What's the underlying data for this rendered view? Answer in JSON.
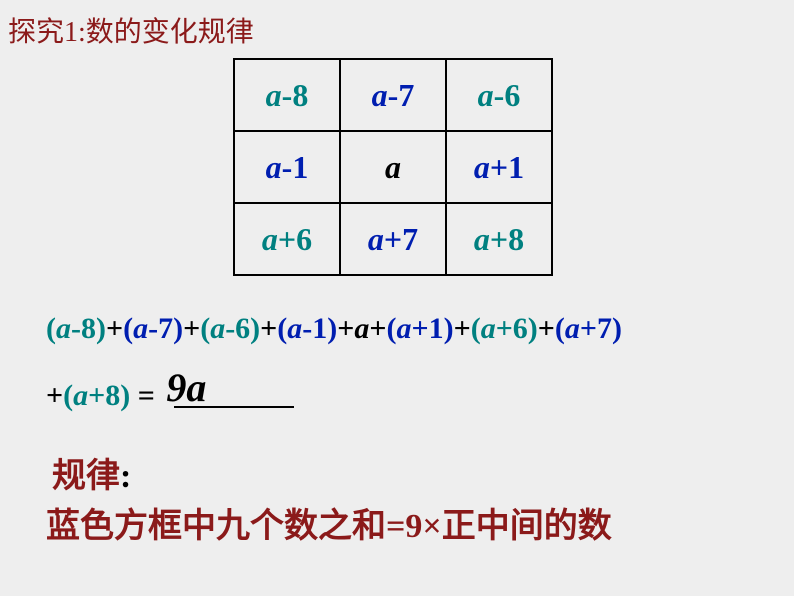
{
  "title": {
    "text": "探究1:数的变化规律",
    "color": "#8b1a1a"
  },
  "grid": {
    "cells": [
      [
        {
          "var": "a",
          "sep": "-",
          "num": "8",
          "color": "#008080"
        },
        {
          "var": "a",
          "sep": "-",
          "num": "7",
          "color": "#001eb0"
        },
        {
          "var": "a",
          "sep": "-",
          "num": "6",
          "color": "#008080"
        }
      ],
      [
        {
          "var": "a",
          "sep": "-",
          "num": "1",
          "color": "#001eb0"
        },
        {
          "var": "a",
          "sep": "",
          "num": "",
          "color": "#000000",
          "center": true
        },
        {
          "var": "a",
          "sep": "+",
          "num": "1",
          "color": "#001eb0"
        }
      ],
      [
        {
          "var": "a",
          "sep": "+",
          "num": "6",
          "color": "#008080"
        },
        {
          "var": "a",
          "sep": "+",
          "num": "7",
          "color": "#001eb0"
        },
        {
          "var": "a",
          "sep": "+",
          "num": "8",
          "color": "#008080"
        }
      ]
    ]
  },
  "equation": {
    "parts": [
      {
        "text": "(",
        "color": "#008080"
      },
      {
        "text": "a",
        "color": "#008080",
        "italic": true
      },
      {
        "text": "-8)",
        "color": "#008080"
      },
      {
        "text": "+",
        "color": "#000"
      },
      {
        "text": "(",
        "color": "#001eb0"
      },
      {
        "text": "a",
        "color": "#001eb0",
        "italic": true
      },
      {
        "text": "-7)",
        "color": "#001eb0"
      },
      {
        "text": "+",
        "color": "#000"
      },
      {
        "text": "(",
        "color": "#008080"
      },
      {
        "text": "a",
        "color": "#008080",
        "italic": true
      },
      {
        "text": "-6)",
        "color": "#008080"
      },
      {
        "text": "+",
        "color": "#000"
      },
      {
        "text": "(",
        "color": "#001eb0"
      },
      {
        "text": "a",
        "color": "#001eb0",
        "italic": true
      },
      {
        "text": "-1)",
        "color": "#001eb0"
      },
      {
        "text": "+",
        "color": "#000"
      },
      {
        "text": "a",
        "color": "#000",
        "italic": true
      },
      {
        "text": "+",
        "color": "#000"
      },
      {
        "text": "(",
        "color": "#001eb0"
      },
      {
        "text": "a",
        "color": "#001eb0",
        "italic": true
      },
      {
        "text": "+1)",
        "color": "#001eb0"
      },
      {
        "text": "+",
        "color": "#000"
      },
      {
        "text": "(",
        "color": "#008080"
      },
      {
        "text": "a",
        "color": "#008080",
        "italic": true
      },
      {
        "text": "+6)",
        "color": "#008080"
      },
      {
        "text": "+",
        "color": "#000"
      },
      {
        "text": "(",
        "color": "#001eb0"
      },
      {
        "text": "a",
        "color": "#001eb0",
        "italic": true
      },
      {
        "text": "+7)",
        "color": "#001eb0"
      }
    ],
    "line2_prefix_parts": [
      {
        "text": "+",
        "color": "#000"
      },
      {
        "text": "(",
        "color": "#008080"
      },
      {
        "text": "a",
        "color": "#008080",
        "italic": true
      },
      {
        "text": "+8)",
        "color": "#008080"
      },
      {
        "text": " = ",
        "color": "#000"
      }
    ],
    "result": "9a"
  },
  "rule": {
    "label": "规律",
    "label_color": "#8b1a1a",
    "colon": ":",
    "colon_color": "#000",
    "text": "蓝色方框中九个数之和=9×正中间的数",
    "text_color": "#8b1a1a"
  },
  "style": {
    "bg": "#eeeeee",
    "title_fontsize": 28,
    "cell_fontsize": 32,
    "center_fontsize": 44,
    "eq_fontsize": 30,
    "result_fontsize": 40,
    "rule_fontsize": 34
  }
}
